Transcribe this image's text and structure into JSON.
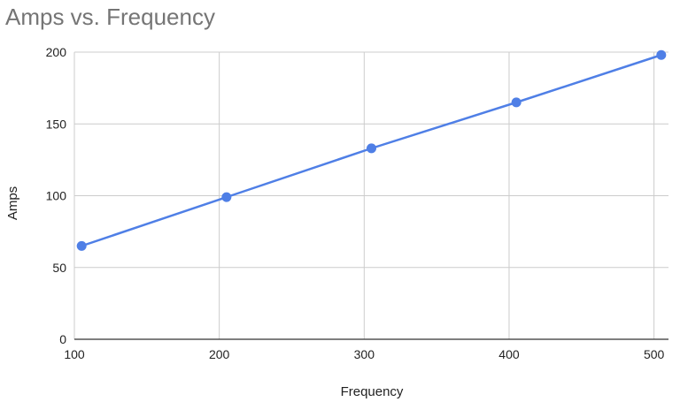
{
  "chart_data": {
    "type": "line",
    "title": "Amps vs. Frequency",
    "xlabel": "Frequency",
    "ylabel": "Amps",
    "xlim": [
      100,
      510
    ],
    "ylim": [
      0,
      200
    ],
    "x_ticks": [
      100,
      200,
      300,
      400,
      500
    ],
    "y_ticks": [
      0,
      50,
      100,
      150,
      200
    ],
    "grid": true,
    "legend": "none",
    "series": [
      {
        "color": "#4f7fe6",
        "points": [
          {
            "x": 105,
            "y": 65
          },
          {
            "x": 205,
            "y": 99
          },
          {
            "x": 305,
            "y": 133
          },
          {
            "x": 405,
            "y": 165
          },
          {
            "x": 505,
            "y": 198
          }
        ]
      }
    ],
    "colors": {
      "grid": "#cccccc",
      "axis": "#333333",
      "text": "#222222",
      "title": "#757575"
    }
  }
}
